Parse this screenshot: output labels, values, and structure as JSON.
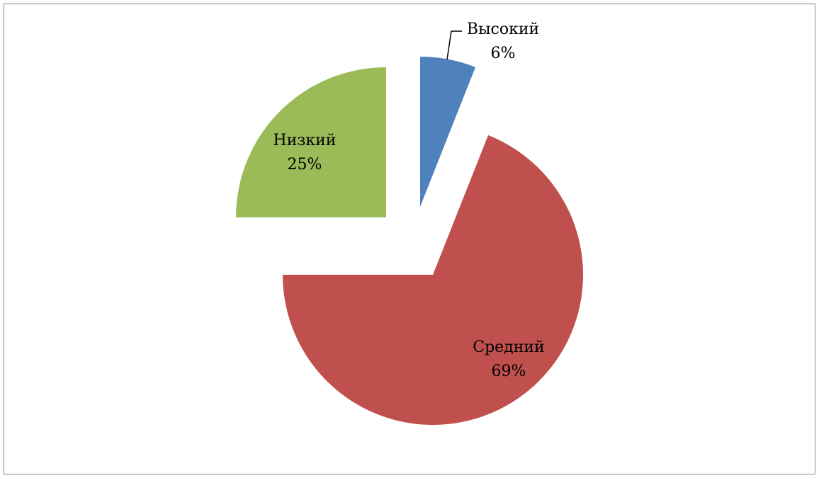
{
  "chart_data": {
    "type": "pie",
    "title": "",
    "categories": [
      "Высокий",
      "Средний",
      "Низкий"
    ],
    "values": [
      6,
      69,
      25
    ],
    "labels": [
      {
        "name": "Высокий",
        "percent": "6%"
      },
      {
        "name": "Средний",
        "percent": "69%"
      },
      {
        "name": "Низкий",
        "percent": "25%"
      }
    ],
    "colors": [
      "#4f81bd",
      "#c0504d",
      "#9bbb59"
    ],
    "exploded": true,
    "legend": "none"
  }
}
